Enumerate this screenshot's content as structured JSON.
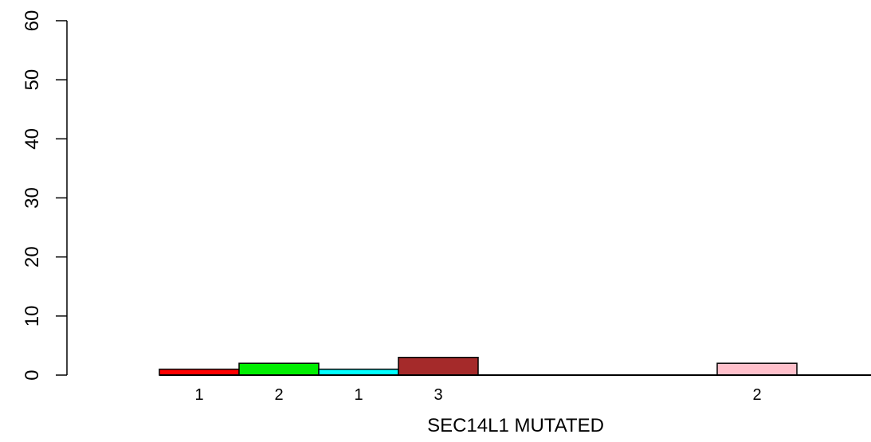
{
  "chart_data": {
    "type": "bar",
    "title": "",
    "xlabel": "SEC14L1 MUTATED",
    "ylabel": "",
    "ylim": [
      0,
      60
    ],
    "yticks": [
      0,
      10,
      20,
      30,
      40,
      50,
      60
    ],
    "grid": false,
    "legend": "none",
    "bars": [
      {
        "slot": 0,
        "value": 1,
        "label": "1",
        "color": "#FF0000"
      },
      {
        "slot": 1,
        "value": 2,
        "label": "2",
        "color": "#00EE00"
      },
      {
        "slot": 2,
        "value": 1,
        "label": "1",
        "color": "#00FFFF"
      },
      {
        "slot": 3,
        "value": 3,
        "label": "3",
        "color": "#A52A2A"
      },
      {
        "slot": 4,
        "value": 0,
        "label": "",
        "color": "#0000FF"
      },
      {
        "slot": 5,
        "value": 0,
        "label": "",
        "color": "#FF00FF"
      },
      {
        "slot": 6,
        "value": 0,
        "label": "",
        "color": "#FFFF00"
      },
      {
        "slot": 7,
        "value": 2,
        "label": "2",
        "color": "#FFC0CB"
      },
      {
        "slot": 8,
        "value": 0,
        "label": "",
        "color": "#808080"
      }
    ]
  }
}
